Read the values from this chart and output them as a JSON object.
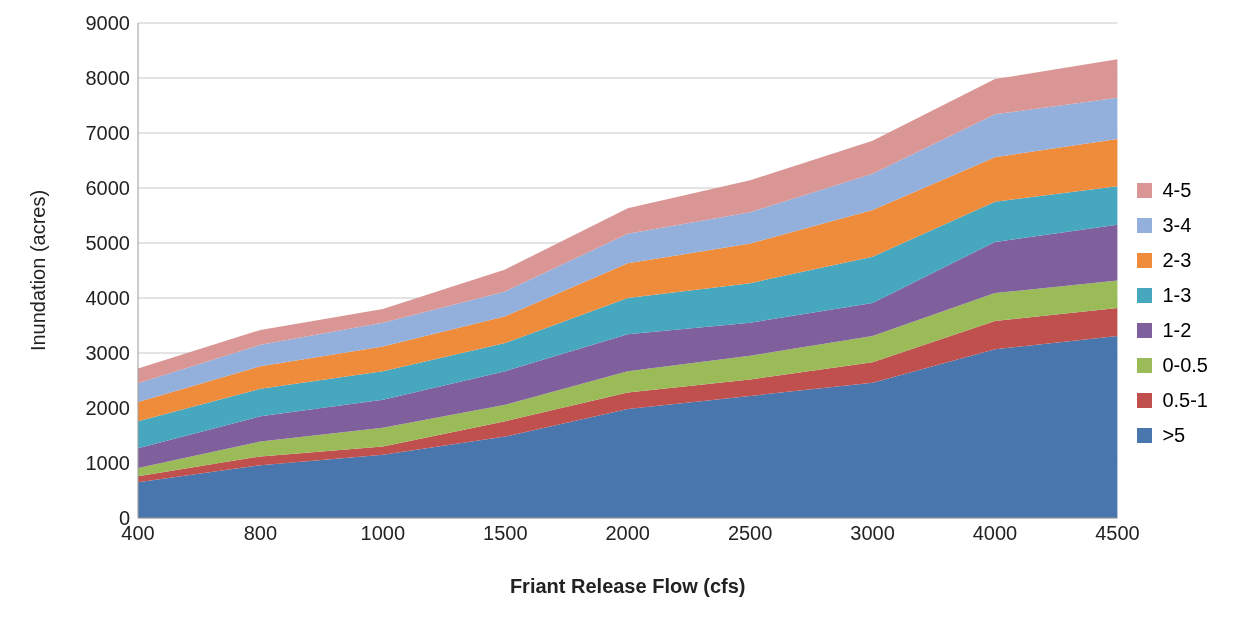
{
  "chart_data": {
    "type": "area",
    "stacked": true,
    "xlabel": "Friant Release Flow (cfs)",
    "ylabel": "Inundation (acres)",
    "categories": [
      "400",
      "800",
      "1000",
      "1500",
      "2000",
      "2500",
      "3000",
      "4000",
      "4500"
    ],
    "series": [
      {
        "name": ">5",
        "color": "#4a76ae",
        "values": [
          650,
          960,
          1150,
          1480,
          1980,
          2220,
          2460,
          3070,
          3310
        ]
      },
      {
        "name": "0.5-1",
        "color": "#c0504d",
        "values": [
          110,
          160,
          150,
          280,
          300,
          300,
          370,
          510,
          510
        ]
      },
      {
        "name": "0-0.5",
        "color": "#9bbb59",
        "values": [
          150,
          270,
          340,
          300,
          390,
          430,
          480,
          510,
          500
        ]
      },
      {
        "name": "1-2",
        "color": "#7f5f9c",
        "values": [
          360,
          460,
          510,
          610,
          670,
          600,
          600,
          930,
          1010
        ]
      },
      {
        "name": "1-3",
        "color": "#46a7bf",
        "values": [
          490,
          500,
          520,
          510,
          660,
          720,
          840,
          730,
          700
        ]
      },
      {
        "name": "2-3",
        "color": "#ef8c3c",
        "values": [
          350,
          410,
          450,
          490,
          630,
          720,
          850,
          810,
          860
        ]
      },
      {
        "name": "3-4",
        "color": "#93afdb",
        "values": [
          340,
          390,
          430,
          450,
          540,
          570,
          660,
          780,
          750
        ]
      },
      {
        "name": "4-5",
        "color": "#d99694",
        "values": [
          270,
          270,
          250,
          400,
          460,
          580,
          600,
          640,
          700
        ]
      }
    ],
    "ylim": [
      0,
      9000
    ],
    "yticks": [
      0,
      1000,
      2000,
      3000,
      4000,
      5000,
      6000,
      7000,
      8000,
      9000
    ],
    "grid": "y",
    "legend": "right"
  }
}
